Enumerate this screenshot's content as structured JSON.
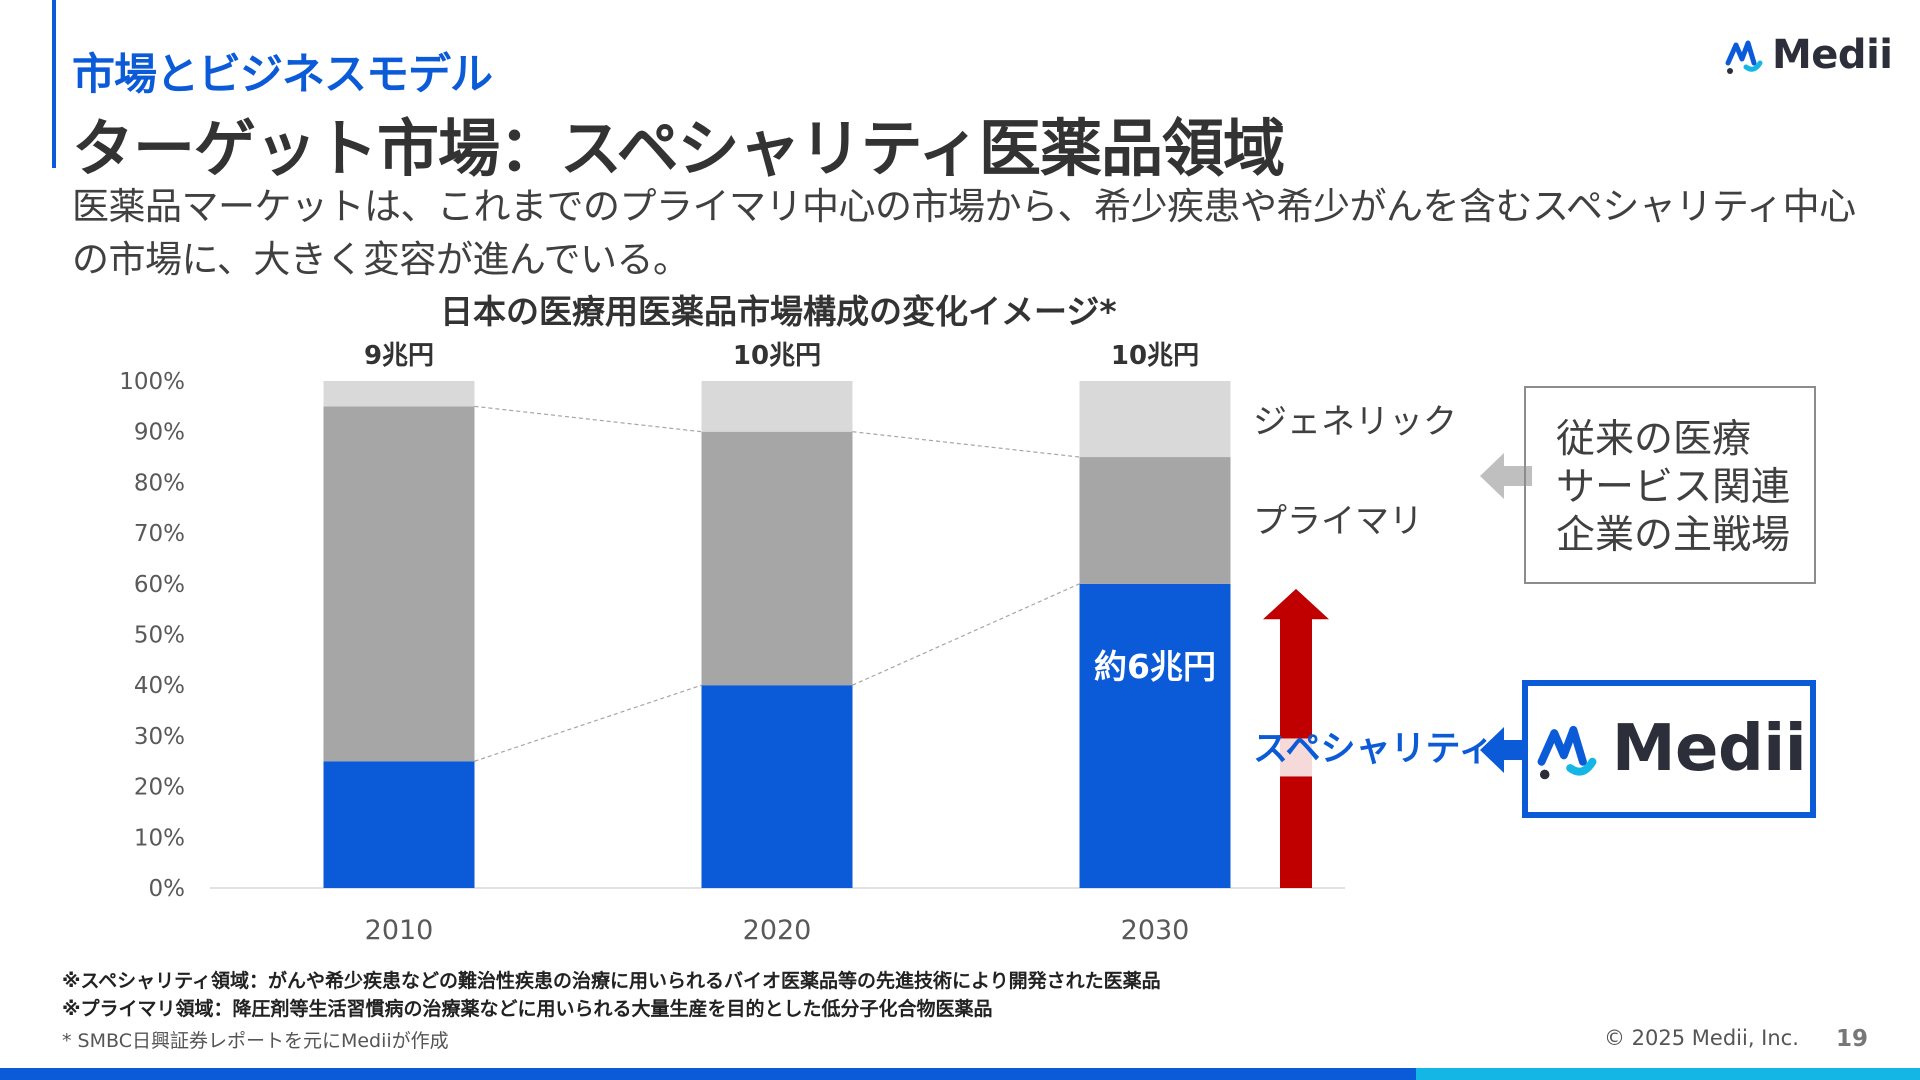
{
  "header": {
    "section": "市場とビジネスモデル",
    "title": "ターゲット市場：スペシャリティ医薬品領域",
    "lead": "医薬品マーケットは、これまでのプライマリ中心の市場から、希少疾患や希少がんを含むスペシャリティ中心の市場に、大きく変容が進んでいる。",
    "logo_text": "Medii"
  },
  "chart_data": {
    "type": "bar",
    "stacked": true,
    "title": "日本の医療用医薬品市場構成の変化イメージ*",
    "categories": [
      "2010",
      "2020",
      "2030"
    ],
    "totals": [
      "9兆円",
      "10兆円",
      "10兆円"
    ],
    "series": [
      {
        "name": "スペシャリティ",
        "values": [
          25,
          40,
          60
        ],
        "color": "#0b5bd9"
      },
      {
        "name": "プライマリ",
        "values": [
          70,
          50,
          25
        ],
        "color": "#a6a6a6"
      },
      {
        "name": "ジェネリック",
        "values": [
          5,
          10,
          15
        ],
        "color": "#d9d9d9"
      }
    ],
    "ylim": [
      0,
      100
    ],
    "yticks": [
      "0%",
      "10%",
      "20%",
      "30%",
      "40%",
      "50%",
      "60%",
      "70%",
      "80%",
      "90%",
      "100%"
    ],
    "annotation": "約6兆円",
    "legend_position": "right"
  },
  "callouts": {
    "conventional_lines": [
      "従来の医療",
      "サービス関連",
      "企業の主戦場"
    ],
    "medii_logo_text": "Medii"
  },
  "footnotes": {
    "note1": "※スペシャリティ領域：がんや希少疾患などの難治性疾患の治療に用いられるバイオ医薬品等の先進技術により開発された医薬品",
    "note2": "※プライマリ領域：降圧剤等生活習慣病の治療薬などに用いられる大量生産を目的とした低分子化合物医薬品",
    "source": "* SMBC日興証券レポートを元にMediiが作成",
    "copyright": "© 2025 Medii, Inc.",
    "page": "19"
  },
  "colors": {
    "brand_blue": "#0b5bd9",
    "brand_cyan": "#13b6e4",
    "arrow_red": "#c00000",
    "arrow_gray": "#bfbfbf"
  }
}
